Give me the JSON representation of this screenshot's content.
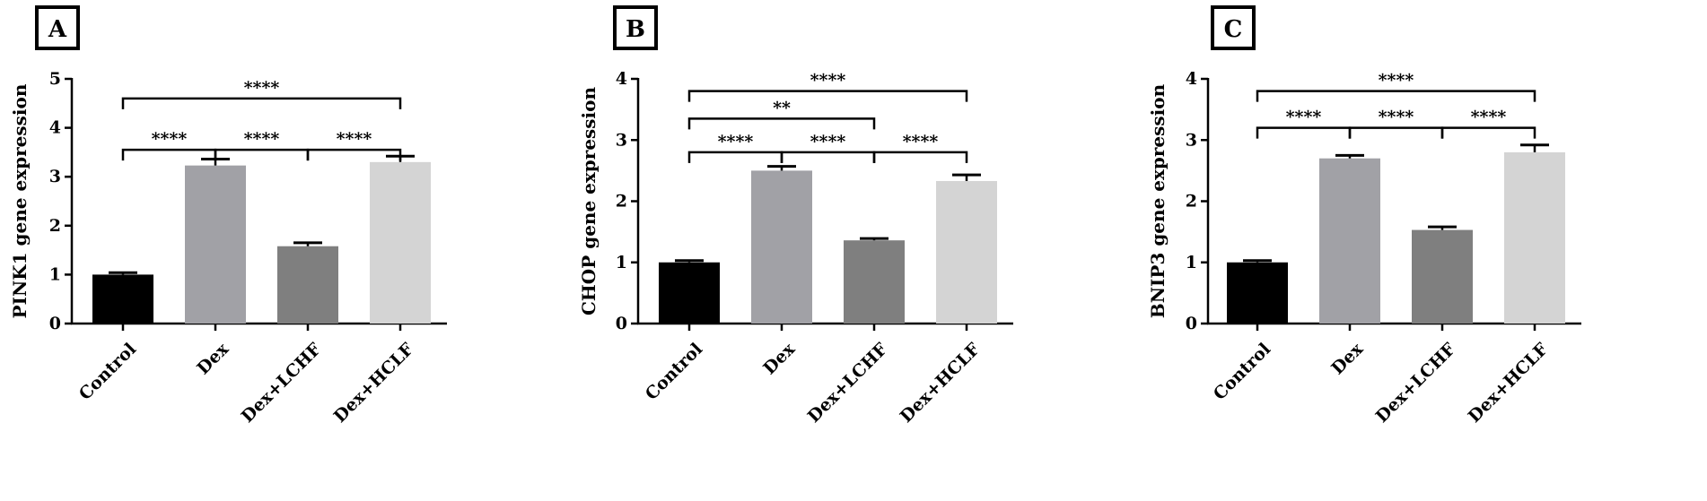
{
  "chart_data": [
    {
      "type": "bar",
      "panel_label": "A",
      "ylabel": "PINK1 gene expression",
      "categories": [
        "Control",
        "Dex",
        "Dex+LCHF",
        "Dex+HCLF"
      ],
      "values": [
        1.0,
        3.23,
        1.58,
        3.3
      ],
      "errors": [
        0.04,
        0.13,
        0.07,
        0.12
      ],
      "bar_colors": [
        "#000000",
        "#a1a1a6",
        "#7f7f7f",
        "#d4d4d4"
      ],
      "ylim": [
        0,
        5
      ],
      "yticks": [
        "0",
        "1",
        "2",
        "3",
        "4",
        "5"
      ],
      "brackets": [
        {
          "from": 0,
          "to": 1,
          "y": 3.55,
          "label": "****"
        },
        {
          "from": 1,
          "to": 2,
          "y": 3.55,
          "label": "****"
        },
        {
          "from": 2,
          "to": 3,
          "y": 3.55,
          "label": "****"
        },
        {
          "from": 0,
          "to": 3,
          "y": 4.6,
          "label": "****"
        }
      ]
    },
    {
      "type": "bar",
      "panel_label": "B",
      "ylabel": "CHOP gene expression",
      "categories": [
        "Control",
        "Dex",
        "Dex+LCHF",
        "Dex+HCLF"
      ],
      "values": [
        1.0,
        2.5,
        1.36,
        2.33
      ],
      "errors": [
        0.03,
        0.07,
        0.03,
        0.1
      ],
      "bar_colors": [
        "#000000",
        "#a1a1a6",
        "#7f7f7f",
        "#d4d4d4"
      ],
      "ylim": [
        0,
        4
      ],
      "yticks": [
        "0",
        "1",
        "2",
        "3",
        "4"
      ],
      "brackets": [
        {
          "from": 0,
          "to": 1,
          "y": 2.8,
          "label": "****"
        },
        {
          "from": 1,
          "to": 2,
          "y": 2.8,
          "label": "****"
        },
        {
          "from": 2,
          "to": 3,
          "y": 2.8,
          "label": "****"
        },
        {
          "from": 0,
          "to": 2,
          "y": 3.35,
          "label": "**"
        },
        {
          "from": 0,
          "to": 3,
          "y": 3.8,
          "label": "****"
        }
      ]
    },
    {
      "type": "bar",
      "panel_label": "C",
      "ylabel": "BNIP3 gene expression",
      "categories": [
        "Control",
        "Dex",
        "Dex+LCHF",
        "Dex+HCLF"
      ],
      "values": [
        1.0,
        2.7,
        1.53,
        2.8
      ],
      "errors": [
        0.03,
        0.05,
        0.05,
        0.12
      ],
      "bar_colors": [
        "#000000",
        "#a1a1a6",
        "#7f7f7f",
        "#d4d4d4"
      ],
      "ylim": [
        0,
        4
      ],
      "yticks": [
        "0",
        "1",
        "2",
        "3",
        "4"
      ],
      "brackets": [
        {
          "from": 0,
          "to": 1,
          "y": 3.2,
          "label": "****"
        },
        {
          "from": 1,
          "to": 2,
          "y": 3.2,
          "label": "****"
        },
        {
          "from": 2,
          "to": 3,
          "y": 3.2,
          "label": "****"
        },
        {
          "from": 0,
          "to": 3,
          "y": 3.8,
          "label": "****"
        }
      ]
    }
  ]
}
